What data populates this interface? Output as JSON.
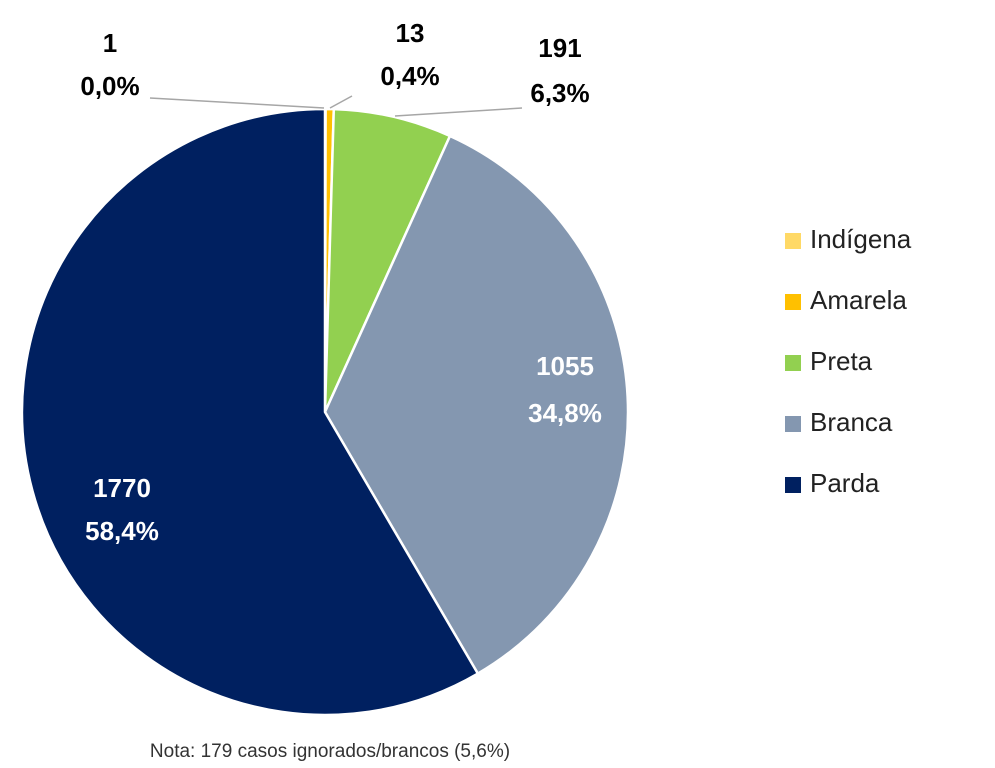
{
  "chart_data": {
    "type": "pie",
    "categories": [
      "Indígena",
      "Amarela",
      "Preta",
      "Branca",
      "Parda"
    ],
    "values": [
      1,
      13,
      191,
      1055,
      1770
    ],
    "percent_labels": [
      "0,0%",
      "0,4%",
      "6,3%",
      "34,8%",
      "58,4%"
    ],
    "colors": [
      "#ffd966",
      "#ffc000",
      "#92d050",
      "#8497b0",
      "#002060"
    ],
    "legend": "right",
    "note": "Nota: 179 casos ignorados/brancos (5,6%)"
  }
}
